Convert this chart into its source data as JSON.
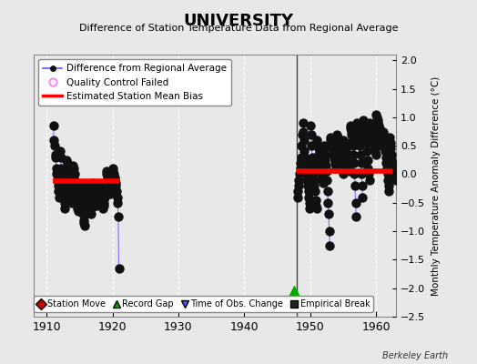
{
  "title": "UNIVERSITY",
  "subtitle": "Difference of Station Temperature Data from Regional Average",
  "ylabel_right": "Monthly Temperature Anomaly Difference (°C)",
  "xlim": [
    1908,
    1963
  ],
  "ylim": [
    -2.5,
    2.1
  ],
  "yticks": [
    -2.5,
    -2.0,
    -1.5,
    -1.0,
    -0.5,
    0.0,
    0.5,
    1.0,
    1.5,
    2.0
  ],
  "xticks": [
    1910,
    1920,
    1930,
    1940,
    1950,
    1960
  ],
  "background_color": "#e8e8e8",
  "plot_bg_color": "#e8e8e8",
  "grid_color": "#ffffff",
  "segment1_x_start": 1911.0,
  "segment1_x_end": 1921.0,
  "segment2_x_start": 1948.0,
  "segment2_x_end": 1962.5,
  "bias1": -0.12,
  "bias2": 0.05,
  "record_gap_x": 1947.5,
  "record_gap_y": -2.05,
  "vertical_line_x": 1948.0,
  "line_color": "#5555ff",
  "dot_color": "#111111",
  "bias_color": "#ff0000",
  "qc_color": "#ff88ff",
  "marker_size": 3.0,
  "berkeley_earth_label": "Berkeley Earth",
  "seg1_monthly": [
    [
      1911,
      [
        0.6,
        0.85,
        0.5,
        0.35,
        0.3,
        0.1,
        0.0,
        -0.1,
        -0.2,
        -0.3,
        -0.4,
        -0.1
      ]
    ],
    [
      1912,
      [
        0.4,
        0.3,
        0.1,
        0.0,
        -0.1,
        -0.2,
        -0.3,
        -0.4,
        -0.5,
        -0.6,
        -0.3,
        -0.2
      ]
    ],
    [
      1913,
      [
        0.25,
        0.2,
        0.1,
        0.0,
        -0.1,
        -0.15,
        -0.2,
        -0.3,
        -0.4,
        -0.5,
        -0.35,
        -0.2
      ]
    ],
    [
      1914,
      [
        0.15,
        0.1,
        0.0,
        -0.1,
        -0.2,
        -0.3,
        -0.4,
        -0.5,
        -0.6,
        -0.65,
        -0.5,
        -0.3
      ]
    ],
    [
      1915,
      [
        -0.2,
        -0.3,
        -0.4,
        -0.5,
        -0.55,
        -0.6,
        -0.7,
        -0.8,
        -0.85,
        -0.9,
        -0.7,
        -0.5
      ]
    ],
    [
      1916,
      [
        -0.2,
        -0.25,
        -0.35,
        -0.45,
        -0.5,
        -0.55,
        -0.6,
        -0.65,
        -0.7,
        -0.6,
        -0.45,
        -0.3
      ]
    ],
    [
      1917,
      [
        -0.15,
        -0.2,
        -0.3,
        -0.4,
        -0.45,
        -0.5,
        -0.55,
        -0.5,
        -0.4,
        -0.35,
        -0.25,
        -0.2
      ]
    ],
    [
      1918,
      [
        -0.3,
        -0.35,
        -0.4,
        -0.45,
        -0.5,
        -0.55,
        -0.6,
        -0.55,
        -0.5,
        -0.4,
        -0.35,
        -0.25
      ]
    ],
    [
      1919,
      [
        0.05,
        0.0,
        -0.05,
        -0.1,
        -0.15,
        -0.2,
        -0.25,
        -0.3,
        -0.35,
        -0.3,
        -0.2,
        -0.1
      ]
    ],
    [
      1920,
      [
        0.1,
        0.05,
        0.0,
        -0.05,
        -0.1,
        -0.15,
        -0.2,
        -0.3,
        -0.4,
        -0.5,
        -0.75,
        -1.65
      ]
    ]
  ],
  "seg2_monthly": [
    [
      1948,
      [
        -0.4,
        -0.3,
        -0.2,
        -0.1,
        0.0,
        0.1,
        0.2,
        0.3,
        0.5,
        0.7,
        0.75,
        0.9
      ]
    ],
    [
      1949,
      [
        0.6,
        0.4,
        0.3,
        0.2,
        0.1,
        0.0,
        -0.1,
        -0.2,
        -0.3,
        -0.4,
        -0.5,
        -0.6
      ]
    ],
    [
      1950,
      [
        0.85,
        0.7,
        0.5,
        0.3,
        0.15,
        0.0,
        -0.1,
        -0.2,
        -0.3,
        -0.45,
        -0.55,
        -0.6
      ]
    ],
    [
      1951,
      [
        0.6,
        0.5,
        0.45,
        0.35,
        0.3,
        0.25,
        0.2,
        0.1,
        0.0,
        -0.05,
        -0.1,
        -0.15
      ]
    ],
    [
      1952,
      [
        0.5,
        0.45,
        0.35,
        0.25,
        0.15,
        0.05,
        -0.1,
        -0.3,
        -0.5,
        -0.7,
        -1.0,
        -1.25
      ]
    ],
    [
      1953,
      [
        0.65,
        0.6,
        0.55,
        0.5,
        0.45,
        0.4,
        0.35,
        0.3,
        0.25,
        0.2,
        0.15,
        0.1
      ]
    ],
    [
      1954,
      [
        0.7,
        0.65,
        0.6,
        0.55,
        0.5,
        0.45,
        0.4,
        0.35,
        0.3,
        0.2,
        0.1,
        0.0
      ]
    ],
    [
      1955,
      [
        0.6,
        0.55,
        0.5,
        0.45,
        0.4,
        0.35,
        0.3,
        0.25,
        0.2,
        0.15,
        0.1,
        0.05
      ]
    ],
    [
      1956,
      [
        0.85,
        0.8,
        0.75,
        0.7,
        0.6,
        0.5,
        0.35,
        0.2,
        0.0,
        -0.2,
        -0.5,
        -0.75
      ]
    ],
    [
      1957,
      [
        0.9,
        0.85,
        0.8,
        0.75,
        0.7,
        0.6,
        0.5,
        0.35,
        0.2,
        0.0,
        -0.2,
        -0.4
      ]
    ],
    [
      1958,
      [
        0.95,
        0.9,
        0.85,
        0.8,
        0.75,
        0.65,
        0.55,
        0.4,
        0.25,
        0.1,
        0.0,
        -0.1
      ]
    ],
    [
      1959,
      [
        0.9,
        0.85,
        0.8,
        0.75,
        0.7,
        0.65,
        0.6,
        0.55,
        0.5,
        0.45,
        0.4,
        0.35
      ]
    ],
    [
      1960,
      [
        1.05,
        1.0,
        0.95,
        0.9,
        0.85,
        0.8,
        0.75,
        0.7,
        0.65,
        0.6,
        0.55,
        0.5
      ]
    ],
    [
      1961,
      [
        0.75,
        0.7,
        0.6,
        0.5,
        0.4,
        0.3,
        0.2,
        0.1,
        0.0,
        -0.1,
        -0.2,
        -0.3
      ]
    ],
    [
      1962,
      [
        0.65,
        0.55,
        0.45,
        0.35,
        0.25,
        0.2,
        0.15,
        0.1,
        0.05,
        0.0,
        -0.05,
        -0.1
      ]
    ]
  ]
}
